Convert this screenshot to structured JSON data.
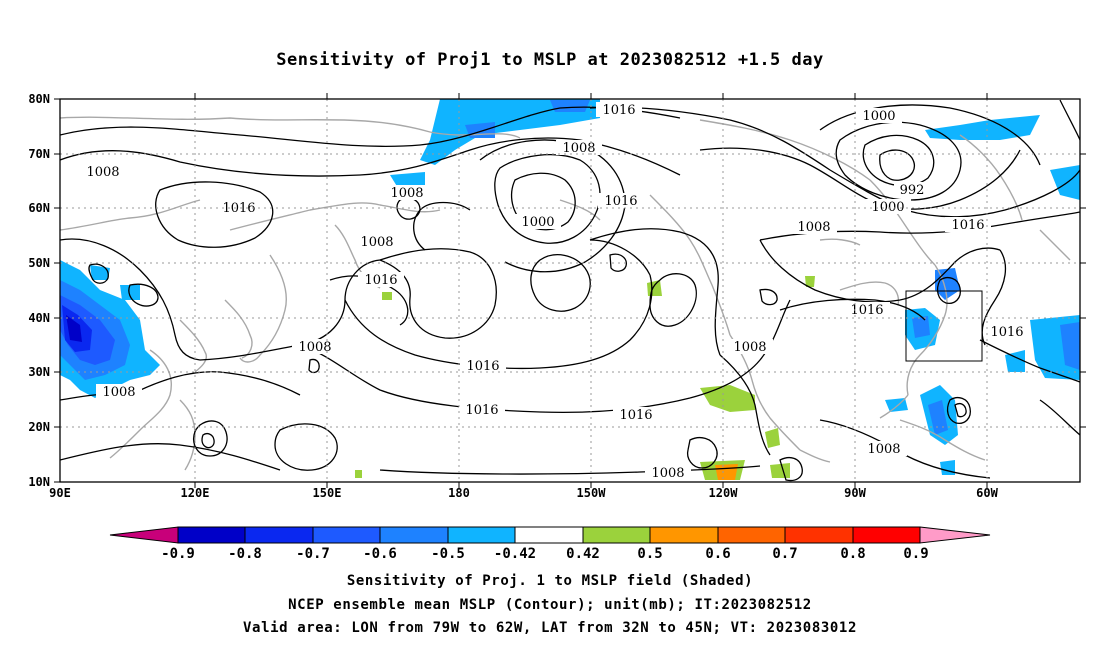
{
  "title": "Sensitivity of Proj1 to MSLP at 2023082512 +1.5 day",
  "lat_labels": [
    "80N",
    "70N",
    "60N",
    "50N",
    "40N",
    "30N",
    "20N",
    "10N"
  ],
  "lon_labels": [
    "90E",
    "120E",
    "150E",
    "180",
    "150W",
    "120W",
    "90W",
    "60W"
  ],
  "contour_labels": [
    "1016",
    "1008",
    "1000",
    "1008",
    "1016",
    "1008",
    "1016",
    "1008",
    "1000",
    "1016",
    "1016",
    "992",
    "1000",
    "1008",
    "1016",
    "1008",
    "1016",
    "1008",
    "1016",
    "1016",
    "1016",
    "1008",
    "1008",
    "1008"
  ],
  "colorbar": {
    "labels": [
      "-0.9",
      "-0.8",
      "-0.7",
      "-0.6",
      "-0.5",
      "-0.42",
      "0.42",
      "0.5",
      "0.6",
      "0.7",
      "0.8",
      "0.9"
    ],
    "colors": [
      "#c8007a",
      "#0000c8",
      "#0a28f0",
      "#1e5aff",
      "#1e82ff",
      "#10b4ff",
      "#ffffff",
      "#9bd23c",
      "#ff9600",
      "#ff6400",
      "#ff3200",
      "#ff0000",
      "#ff9bc8"
    ]
  },
  "captions": [
    "Sensitivity of Proj. 1 to MSLP field (Shaded)",
    "NCEP ensemble mean MSLP (Contour); unit(mb); IT:2023082512",
    "Valid area: LON from 79W to 62W, LAT from 32N to 45N; VT: 2023083012"
  ]
}
